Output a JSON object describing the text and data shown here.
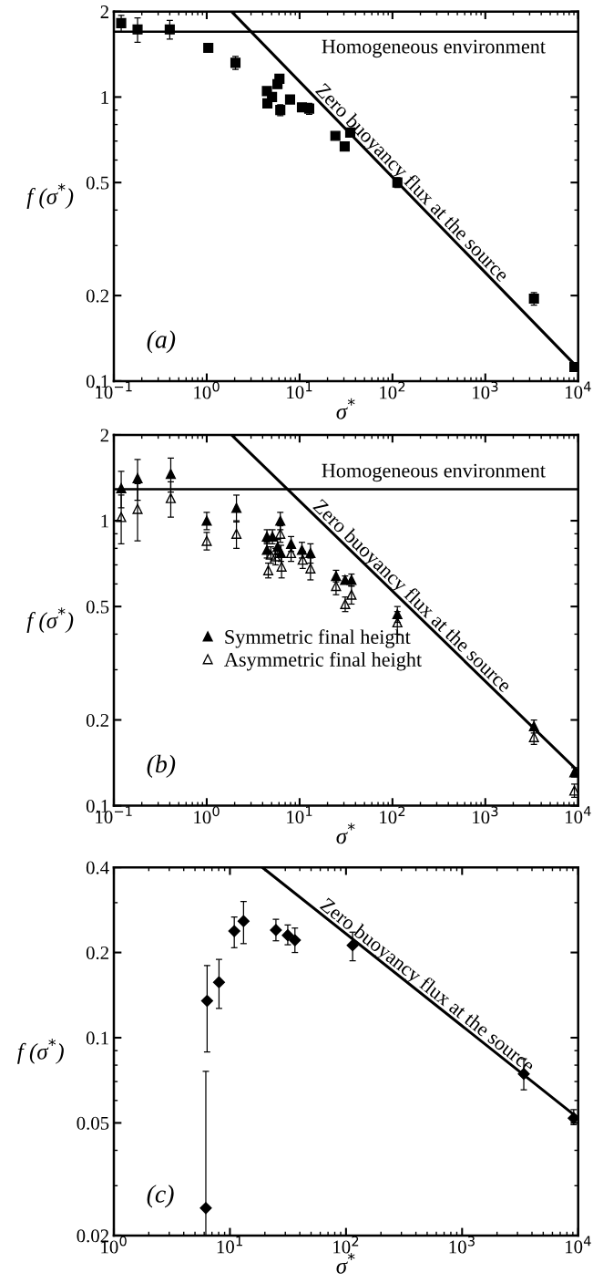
{
  "chart_data": [
    {
      "type": "scatter",
      "xlabel": "σ$^{*}$",
      "ylabel": "f (σ$^{*}$)",
      "annotations": [
        "(a)"
      ],
      "xlim": [
        0.1,
        10000
      ],
      "ylim": [
        0.1,
        2
      ],
      "log": "xy",
      "grid": false,
      "xticks": [
        {
          "value": 0.1,
          "label": "10$^{−1}$"
        },
        {
          "value": 1,
          "label": "10$^{0}$"
        },
        {
          "value": 10,
          "label": "10$^{1}$"
        },
        {
          "value": 100,
          "label": "10$^{2}$"
        },
        {
          "value": 1000,
          "label": "10$^{3}$"
        },
        {
          "value": 10000,
          "label": "10$^{4}$"
        }
      ],
      "yticks": [
        0.1,
        0.2,
        0.5,
        1,
        2
      ],
      "ref_lines": [
        {
          "axis": "y",
          "value": 1.7,
          "label": "Homogeneous environment",
          "color": "#000000"
        }
      ],
      "series": [
        {
          "color": "#000000",
          "marker": "square",
          "x": [
            0.12,
            0.18,
            0.4,
            1.04,
            2.04,
            4.45,
            4.5,
            5.05,
            5.78,
            6.07,
            6.2,
            7.9,
            10.6,
            12.7,
            24.3,
            30.6,
            35.1,
            113,
            3340,
            9100
          ],
          "values": [
            1.82,
            1.73,
            1.73,
            1.49,
            1.32,
            1.05,
            0.95,
            1.0,
            1.11,
            1.16,
            0.9,
            0.98,
            0.92,
            0.91,
            0.73,
            0.67,
            0.75,
            0.5,
            0.195,
            0.112
          ],
          "errors": [
            0.12,
            0.17,
            0.13,
            0.03,
            0.07,
            0.03,
            null,
            null,
            null,
            0.04,
            0.04,
            0.03,
            0.02,
            0.04,
            null,
            null,
            null,
            0.02,
            0.01,
            0.004
          ]
        },
        {
          "type": "line",
          "name": "Zero buoyancy flux at the source",
          "color": "#000000",
          "x": [
            1.85,
            10000
          ],
          "values": [
            2,
            0.111
          ]
        }
      ]
    },
    {
      "type": "scatter",
      "xlabel": "σ$^{*}$",
      "ylabel": "f (σ$^{*}$)",
      "annotations": [
        "(b)"
      ],
      "xlim": [
        0.1,
        10000
      ],
      "ylim": [
        0.1,
        2
      ],
      "log": "xy",
      "grid": false,
      "legend": "center left",
      "xticks": [
        {
          "value": 0.1,
          "label": "10$^{−1}$"
        },
        {
          "value": 1,
          "label": "10$^{0}$"
        },
        {
          "value": 10,
          "label": "10$^{1}$"
        },
        {
          "value": 100,
          "label": "10$^{2}$"
        },
        {
          "value": 1000,
          "label": "10$^{3}$"
        },
        {
          "value": 10000,
          "label": "10$^{4}$"
        }
      ],
      "yticks": [
        0.1,
        0.2,
        0.5,
        1,
        2
      ],
      "ref_lines": [
        {
          "axis": "y",
          "value": 1.29,
          "label": "Homogeneous environment",
          "color": "#000000"
        }
      ],
      "series": [
        {
          "name": "Symmetric final height",
          "color": "#000000",
          "marker": "triangle",
          "x": [
            0.12,
            0.18,
            0.41,
            1.0,
            2.09,
            4.45,
            5.1,
            4.45,
            5.8,
            6.2,
            6.3,
            8.1,
            10.6,
            13.1,
            24.7,
            30.9,
            36.2,
            113,
            3340,
            9100
          ],
          "values": [
            1.3,
            1.41,
            1.46,
            1.0,
            1.11,
            0.88,
            0.88,
            0.79,
            0.81,
            1.0,
            0.77,
            0.83,
            0.79,
            0.77,
            0.64,
            0.62,
            0.62,
            0.47,
            0.19,
            0.131
          ],
          "errors": [
            0.19,
            0.23,
            0.2,
            0.07,
            0.12,
            0.05,
            0.05,
            0.05,
            0.05,
            0.07,
            0.05,
            0.05,
            0.05,
            0.06,
            0.03,
            0.02,
            0.03,
            0.03,
            0.01,
            0.005
          ]
        },
        {
          "name": "Asymmetric final height",
          "color": "#000000",
          "marker": "triangle",
          "x": [
            0.12,
            0.18,
            0.41,
            1.0,
            2.09,
            4.6,
            4.9,
            5.5,
            6.2,
            6.4,
            8.1,
            10.8,
            13.1,
            24.7,
            31,
            36.2,
            113,
            3340,
            9100
          ],
          "values": [
            1.03,
            1.1,
            1.2,
            0.85,
            0.9,
            0.67,
            0.76,
            0.75,
            0.9,
            0.69,
            0.77,
            0.73,
            0.68,
            0.59,
            0.51,
            0.55,
            0.44,
            0.174,
            0.113
          ],
          "errors": [
            0.2,
            0.25,
            0.17,
            0.06,
            0.1,
            0.04,
            0.05,
            0.05,
            0.06,
            0.06,
            0.05,
            0.05,
            0.06,
            0.04,
            0.03,
            0.04,
            0.04,
            0.01,
            0.006
          ]
        },
        {
          "type": "line",
          "name": "Zero buoyancy flux at the source",
          "color": "#000000",
          "x": [
            1.85,
            10000
          ],
          "values": [
            2,
            0.132
          ]
        }
      ]
    },
    {
      "type": "scatter",
      "xlabel": "σ$^{*}$",
      "ylabel": "f (σ$^{*}$)",
      "annotations": [
        "(c)"
      ],
      "xlim": [
        1,
        10000
      ],
      "ylim": [
        0.02,
        0.4
      ],
      "log": "xy",
      "grid": false,
      "xticks": [
        {
          "value": 1,
          "label": "10$^{0}$"
        },
        {
          "value": 10,
          "label": "10$^{1}$"
        },
        {
          "value": 100,
          "label": "10$^{2}$"
        },
        {
          "value": 1000,
          "label": "10$^{3}$"
        },
        {
          "value": 10000,
          "label": "10$^{4}$"
        }
      ],
      "yticks": [
        0.02,
        0.05,
        0.1,
        0.2,
        0.4
      ],
      "series": [
        {
          "color": "#000000",
          "marker": "diamond",
          "x": [
            6.36,
            6.2,
            8.05,
            10.9,
            13.1,
            24.9,
            31.5,
            36.3,
            114,
            3400,
            9150
          ],
          "values": [
            0.135,
            0.025,
            0.157,
            0.238,
            0.258,
            0.24,
            0.23,
            0.221,
            0.212,
            0.0745,
            0.052
          ],
          "errors": [
            [
              0.089,
              0.18
            ],
            [
              0.02,
              0.076
            ],
            [
              0.127,
              0.189
            ],
            [
              0.208,
              0.267
            ],
            [
              0.215,
              0.303
            ],
            [
              0.22,
              0.262
            ],
            [
              0.213,
              0.25
            ],
            [
              0.2,
              0.244
            ],
            [
              0.187,
              0.236
            ],
            [
              0.0654,
              0.0843
            ],
            [
              0.0493,
              0.0557
            ]
          ]
        },
        {
          "type": "line",
          "name": "Zero buoyancy flux at the source",
          "color": "#000000",
          "x": [
            19,
            10000
          ],
          "values": [
            0.4,
            0.052
          ]
        }
      ]
    }
  ]
}
